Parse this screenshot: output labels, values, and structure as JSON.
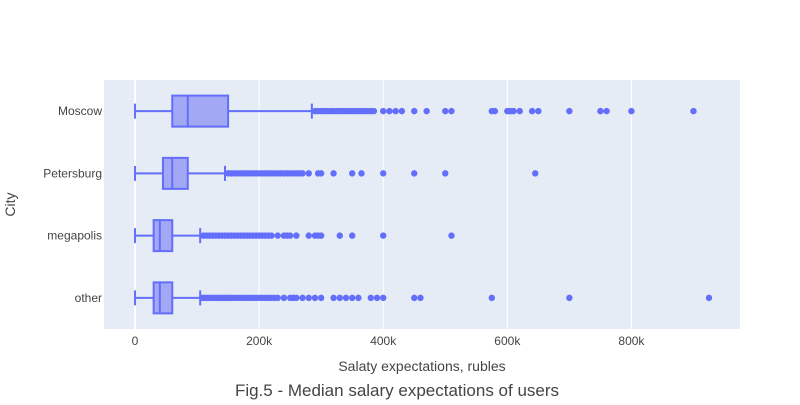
{
  "chart_data": {
    "type": "box",
    "orientation": "horizontal",
    "title": "Fig.5 - Median salary expectations of users",
    "xlabel": "Salaty expectations, rubles",
    "ylabel": "City",
    "xlim": [
      -50000,
      975000
    ],
    "x_ticks": [
      {
        "value": 0,
        "label": "0"
      },
      {
        "value": 200000,
        "label": "200k"
      },
      {
        "value": 400000,
        "label": "400k"
      },
      {
        "value": 600000,
        "label": "600k"
      },
      {
        "value": 800000,
        "label": "800k"
      }
    ],
    "grid": true,
    "colors": {
      "plot_bg": "#e5ecf6",
      "box_stroke": "#636efa",
      "box_fill": "#a3a8f5",
      "grid": "#ffffff",
      "text": "#444444",
      "title": "#444444"
    },
    "categories": [
      "Moscow",
      "Petersburg",
      "megapolis",
      "other"
    ],
    "boxes": [
      {
        "category": "Moscow",
        "min": 0,
        "q1": 60000,
        "median": 85000,
        "q3": 150000,
        "max": 285000,
        "outliers": [
          290000,
          295000,
          300000,
          305000,
          310000,
          315000,
          320000,
          325000,
          330000,
          335000,
          340000,
          345000,
          350000,
          355000,
          360000,
          365000,
          370000,
          375000,
          380000,
          385000,
          400000,
          410000,
          420000,
          430000,
          450000,
          470000,
          500000,
          510000,
          575000,
          580000,
          600000,
          605000,
          610000,
          620000,
          640000,
          650000,
          700000,
          750000,
          760000,
          800000,
          900000
        ]
      },
      {
        "category": "Petersburg",
        "min": 0,
        "q1": 45000,
        "median": 60000,
        "q3": 85000,
        "max": 145000,
        "outliers": [
          150000,
          155000,
          160000,
          165000,
          170000,
          175000,
          180000,
          185000,
          190000,
          195000,
          200000,
          205000,
          210000,
          215000,
          220000,
          225000,
          230000,
          235000,
          240000,
          245000,
          250000,
          255000,
          260000,
          265000,
          270000,
          280000,
          295000,
          300000,
          320000,
          350000,
          365000,
          400000,
          450000,
          500000,
          645000
        ]
      },
      {
        "category": "megapolis",
        "min": 0,
        "q1": 30000,
        "median": 40000,
        "q3": 60000,
        "max": 105000,
        "outliers": [
          110000,
          115000,
          120000,
          125000,
          130000,
          135000,
          140000,
          145000,
          150000,
          155000,
          160000,
          165000,
          170000,
          175000,
          180000,
          185000,
          190000,
          195000,
          200000,
          205000,
          210000,
          215000,
          220000,
          230000,
          240000,
          245000,
          250000,
          260000,
          280000,
          290000,
          295000,
          300000,
          330000,
          350000,
          400000,
          510000
        ]
      },
      {
        "category": "other",
        "min": 0,
        "q1": 30000,
        "median": 40000,
        "q3": 60000,
        "max": 105000,
        "outliers": [
          108000,
          112000,
          116000,
          120000,
          124000,
          128000,
          132000,
          136000,
          140000,
          144000,
          148000,
          152000,
          156000,
          160000,
          165000,
          170000,
          175000,
          180000,
          185000,
          190000,
          195000,
          200000,
          205000,
          210000,
          215000,
          220000,
          225000,
          230000,
          240000,
          250000,
          255000,
          260000,
          270000,
          280000,
          290000,
          300000,
          320000,
          330000,
          340000,
          350000,
          360000,
          380000,
          390000,
          400000,
          450000,
          460000,
          575000,
          700000,
          925000
        ]
      }
    ]
  }
}
